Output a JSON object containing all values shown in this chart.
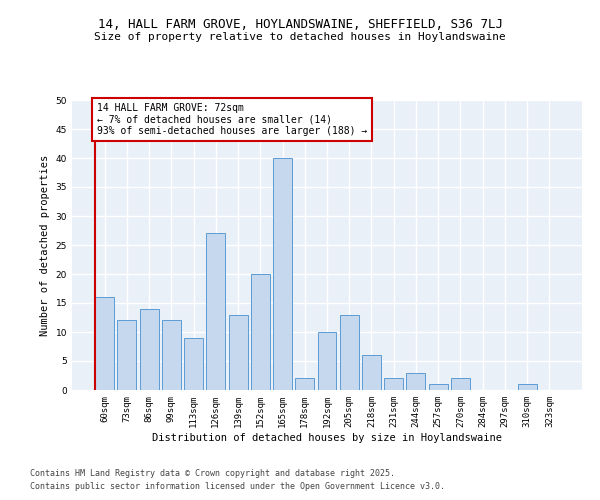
{
  "title_line1": "14, HALL FARM GROVE, HOYLANDSWAINE, SHEFFIELD, S36 7LJ",
  "title_line2": "Size of property relative to detached houses in Hoylandswaine",
  "xlabel": "Distribution of detached houses by size in Hoylandswaine",
  "ylabel": "Number of detached properties",
  "categories": [
    "60sqm",
    "73sqm",
    "86sqm",
    "99sqm",
    "113sqm",
    "126sqm",
    "139sqm",
    "152sqm",
    "165sqm",
    "178sqm",
    "192sqm",
    "205sqm",
    "218sqm",
    "231sqm",
    "244sqm",
    "257sqm",
    "270sqm",
    "284sqm",
    "297sqm",
    "310sqm",
    "323sqm"
  ],
  "values": [
    16,
    12,
    14,
    12,
    9,
    27,
    13,
    20,
    40,
    2,
    10,
    13,
    6,
    2,
    3,
    1,
    2,
    0,
    0,
    1,
    0
  ],
  "bar_color": "#c5d8ee",
  "bar_edge_color": "#5b9bd5",
  "background_color": "#eaf0f8",
  "grid_color": "#ffffff",
  "annotation_box_color": "#cc0000",
  "annotation_text_line1": "14 HALL FARM GROVE: 72sqm",
  "annotation_text_line2": "← 7% of detached houses are smaller (14)",
  "annotation_text_line3": "93% of semi-detached houses are larger (188) →",
  "vline_color": "#cc0000",
  "ylim_max": 50,
  "yticks": [
    0,
    5,
    10,
    15,
    20,
    25,
    30,
    35,
    40,
    45,
    50
  ],
  "footnote_line1": "Contains HM Land Registry data © Crown copyright and database right 2025.",
  "footnote_line2": "Contains public sector information licensed under the Open Government Licence v3.0.",
  "title_fontsize": 9,
  "subtitle_fontsize": 8,
  "axis_label_fontsize": 7.5,
  "tick_fontsize": 6.5,
  "annotation_fontsize": 7,
  "footnote_fontsize": 6
}
